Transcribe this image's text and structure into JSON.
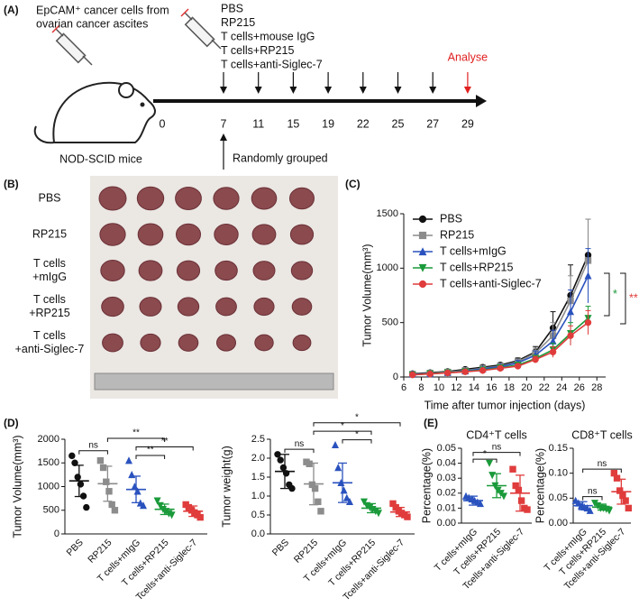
{
  "panel_labels": [
    "(A)",
    "(B)",
    "(C)",
    "(D)",
    "(E)"
  ],
  "timeline": {
    "cells": [
      "EpCAM⁺ cancer cells from",
      "ovarian cancer ascites"
    ],
    "treatments": [
      "PBS",
      "RP215",
      "T cells+mouse IgG",
      "T cells+RP215",
      "T cells+anti-Siglec-7"
    ],
    "days": [
      0,
      7,
      11,
      15,
      19,
      22,
      25,
      27,
      29
    ],
    "analyse": "Analyse",
    "mice": "NOD-SCID mice",
    "grouping": "Randomly grouped"
  },
  "photo": {
    "rows": [
      [
        "PBS"
      ],
      [
        "RP215"
      ],
      [
        "T cells",
        "+mIgG"
      ],
      [
        "T cells",
        "+RP215"
      ],
      [
        "T cells",
        "+anti-Siglec-7"
      ]
    ]
  },
  "chart_data": [
    {
      "type": "line",
      "ylabel": "Tumor Volume(mm³)",
      "xlabel": "Time after tumor injection (days)",
      "x": [
        7,
        9,
        11,
        13,
        15,
        17,
        19,
        21,
        23,
        25,
        27
      ],
      "xlim": [
        6,
        29
      ],
      "xticks": [
        6,
        8,
        10,
        12,
        14,
        16,
        18,
        20,
        22,
        24,
        26,
        28
      ],
      "ylim": [
        0,
        1500
      ],
      "yticks": [
        0,
        500,
        1000,
        1500
      ],
      "legend": "upper left",
      "series": [
        {
          "name": "PBS",
          "color": "#111111",
          "marker": "circle",
          "values": [
            30,
            40,
            50,
            70,
            90,
            110,
            150,
            230,
            450,
            750,
            1120
          ],
          "errors": [
            10,
            10,
            12,
            15,
            20,
            20,
            25,
            50,
            150,
            280,
            330
          ]
        },
        {
          "name": "RP215",
          "color": "#8c8c8c",
          "marker": "square",
          "values": [
            25,
            35,
            45,
            60,
            80,
            100,
            140,
            220,
            380,
            700,
            1070
          ],
          "errors": [
            8,
            10,
            10,
            15,
            18,
            20,
            25,
            45,
            120,
            230,
            380
          ]
        },
        {
          "name": "T cells+mIgG",
          "color": "#2a52be",
          "marker": "triangle",
          "values": [
            25,
            30,
            40,
            55,
            75,
            95,
            130,
            200,
            330,
            600,
            930
          ],
          "errors": [
            8,
            8,
            10,
            12,
            15,
            18,
            22,
            40,
            100,
            200,
            250
          ]
        },
        {
          "name": "T cells+RP215",
          "color": "#1a9a3a",
          "marker": "triangle-down",
          "values": [
            20,
            30,
            40,
            50,
            65,
            85,
            110,
            170,
            250,
            400,
            540
          ],
          "errors": [
            6,
            8,
            8,
            10,
            12,
            15,
            20,
            30,
            60,
            100,
            110
          ]
        },
        {
          "name": "T cells+anti-Siglec-7",
          "color": "#e03c3c",
          "marker": "circle",
          "values": [
            20,
            28,
            38,
            48,
            60,
            80,
            100,
            160,
            230,
            380,
            500
          ],
          "errors": [
            6,
            8,
            8,
            10,
            12,
            15,
            18,
            30,
            50,
            90,
            110
          ]
        }
      ],
      "annotations": [
        {
          "text": "*",
          "color": "#1a9a3a"
        },
        {
          "text": "**",
          "color": "#e03c3c"
        }
      ]
    },
    {
      "type": "dot",
      "ylabel": "Tumor Volume(mm³)",
      "categories": [
        "PBS",
        "RP215",
        "T cells+mIgG",
        "T cells+RP215",
        "Tcells+anti-Siglec-7"
      ],
      "colors": [
        "#111111",
        "#8c8c8c",
        "#2a52be",
        "#1a9a3a",
        "#e03c3c"
      ],
      "markers": [
        "circle",
        "square",
        "triangle",
        "triangle-down",
        "square"
      ],
      "points": [
        [
          1650,
          1500,
          1200,
          1050,
          800,
          560
        ],
        [
          1550,
          1400,
          1100,
          900,
          620,
          500
        ],
        [
          1550,
          1250,
          1000,
          900,
          650,
          600
        ],
        [
          700,
          600,
          520,
          480,
          430,
          400
        ],
        [
          620,
          560,
          500,
          450,
          400,
          350
        ]
      ],
      "means": [
        1120,
        1060,
        940,
        520,
        480
      ],
      "errors": [
        330,
        370,
        280,
        110,
        110
      ],
      "ylim": [
        0,
        2000
      ],
      "yticks": [
        0,
        500,
        1000,
        1500,
        2000
      ],
      "comparisons": [
        [
          0,
          1,
          "ns"
        ],
        [
          2,
          3,
          "**"
        ],
        [
          2,
          4,
          "**"
        ],
        [
          1,
          3,
          "**"
        ]
      ]
    },
    {
      "type": "dot",
      "ylabel": "Tumor weight(g)",
      "categories": [
        "PBS",
        "RP215",
        "T cells+mIgG",
        "T cells+RP215",
        "Tcells+anti-Siglec-7"
      ],
      "colors": [
        "#111111",
        "#8c8c8c",
        "#2a52be",
        "#1a9a3a",
        "#e03c3c"
      ],
      "markers": [
        "circle",
        "square",
        "triangle",
        "triangle-down",
        "square"
      ],
      "points": [
        [
          2.1,
          1.95,
          1.75,
          1.6,
          1.3,
          1.2
        ],
        [
          1.9,
          1.85,
          1.3,
          1.2,
          0.85,
          0.6
        ],
        [
          2.35,
          1.75,
          1.35,
          1.15,
          0.95,
          0.85
        ],
        [
          0.85,
          0.75,
          0.7,
          0.65,
          0.6,
          0.55
        ],
        [
          0.8,
          0.7,
          0.6,
          0.55,
          0.5,
          0.45
        ]
      ],
      "means": [
        1.65,
        1.32,
        1.35,
        0.68,
        0.58
      ],
      "errors": [
        0.45,
        0.55,
        0.52,
        0.12,
        0.12
      ],
      "ylim": [
        0,
        2.5
      ],
      "yticks": [
        {
          "value": 0,
          "label": "0.0"
        },
        0.5,
        {
          "value": 1,
          "label": "1.0"
        },
        1.5,
        {
          "value": 2,
          "label": "2.0"
        },
        2.5
      ],
      "comparisons": [
        [
          0,
          1,
          "ns"
        ],
        [
          2,
          3,
          "*"
        ],
        [
          1,
          3,
          "*"
        ],
        [
          1,
          4,
          "*"
        ]
      ]
    },
    {
      "type": "dot",
      "title": "CD4⁺T cells",
      "ylabel": "Percentage(%)",
      "categories": [
        "T cells+mIgG",
        "T cells+RP215",
        "Tcells+anti-Siglec-7"
      ],
      "colors": [
        "#2a52be",
        "#1a9a3a",
        "#e03c3c"
      ],
      "markers": [
        "triangle",
        "triangle-down",
        "square"
      ],
      "points": [
        [
          0.018,
          0.017,
          0.016,
          0.015,
          0.014,
          0.013
        ],
        [
          0.04,
          0.032,
          0.025,
          0.022,
          0.02,
          0.018
        ],
        [
          0.036,
          0.025,
          0.022,
          0.015,
          0.01,
          0.009
        ]
      ],
      "means": [
        0.015,
        0.025,
        0.02
      ],
      "errors": [
        0.003,
        0.008,
        0.012
      ],
      "ylim": [
        0,
        0.05
      ],
      "yticks": [
        {
          "value": 0,
          "label": "0.00"
        },
        0.01,
        0.02,
        0.03,
        0.04,
        0.05
      ],
      "comparisons": [
        [
          0,
          1,
          "*"
        ],
        [
          0,
          2,
          "ns"
        ]
      ]
    },
    {
      "type": "dot",
      "title": "CD8⁺T cells",
      "ylabel": "Percentage(%)",
      "categories": [
        "T cells+mIgG",
        "T cells+RP215",
        "Tcells+anti-Siglec-7"
      ],
      "colors": [
        "#2a52be",
        "#1a9a3a",
        "#e03c3c"
      ],
      "markers": [
        "triangle",
        "triangle-down",
        "square"
      ],
      "points": [
        [
          0.045,
          0.04,
          0.035,
          0.032,
          0.03,
          0.025
        ],
        [
          0.04,
          0.035,
          0.03,
          0.03,
          0.028,
          0.025
        ],
        [
          0.1,
          0.09,
          0.065,
          0.055,
          0.045,
          0.03
        ]
      ],
      "means": [
        0.035,
        0.032,
        0.063
      ],
      "errors": [
        0.008,
        0.006,
        0.025
      ],
      "ylim": [
        0,
        0.15
      ],
      "yticks": [
        {
          "value": 0,
          "label": "0.00"
        },
        0.05,
        {
          "value": 0.1,
          "label": "0.10"
        },
        0.15
      ],
      "comparisons": [
        [
          0,
          1,
          "ns"
        ],
        [
          0,
          2,
          "ns"
        ]
      ]
    }
  ]
}
